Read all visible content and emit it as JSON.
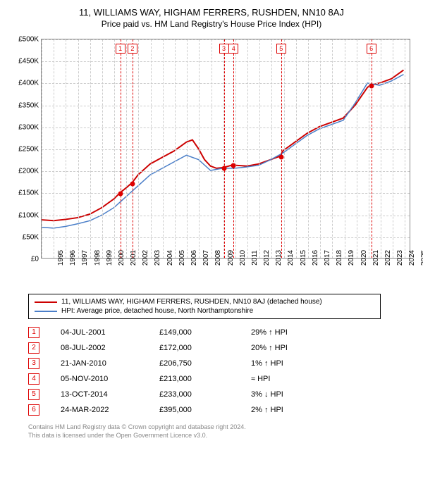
{
  "title": "11, WILLIAMS WAY, HIGHAM FERRERS, RUSHDEN, NN10 8AJ",
  "subtitle": "Price paid vs. HM Land Registry's House Price Index (HPI)",
  "chart": {
    "type": "line",
    "ylim": [
      0,
      500000
    ],
    "ytick_step": 50000,
    "yticks": [
      "£0",
      "£50K",
      "£100K",
      "£150K",
      "£200K",
      "£250K",
      "£300K",
      "£350K",
      "£400K",
      "£450K",
      "£500K"
    ],
    "xlim": [
      1995,
      2025.5
    ],
    "xticks": [
      1995,
      1996,
      1997,
      1998,
      1999,
      2000,
      2001,
      2002,
      2003,
      2004,
      2005,
      2006,
      2007,
      2008,
      2009,
      2010,
      2011,
      2012,
      2013,
      2014,
      2015,
      2016,
      2017,
      2018,
      2019,
      2020,
      2021,
      2022,
      2023,
      2024,
      2025
    ],
    "background_color": "#ffffff",
    "grid_color": "#cccccc",
    "border_color": "#888888",
    "series": [
      {
        "name": "11, WILLIAMS WAY, HIGHAM FERRERS, RUSHDEN, NN10 8AJ (detached house)",
        "color": "#cc0000",
        "width": 2,
        "points": [
          [
            1995,
            87000
          ],
          [
            1996,
            85000
          ],
          [
            1997,
            88000
          ],
          [
            1998,
            92000
          ],
          [
            1999,
            100000
          ],
          [
            2000,
            115000
          ],
          [
            2001,
            135000
          ],
          [
            2001.5,
            149000
          ],
          [
            2002,
            160000
          ],
          [
            2002.5,
            172000
          ],
          [
            2003,
            190000
          ],
          [
            2004,
            215000
          ],
          [
            2005,
            230000
          ],
          [
            2006,
            245000
          ],
          [
            2007,
            265000
          ],
          [
            2007.5,
            270000
          ],
          [
            2008,
            250000
          ],
          [
            2008.5,
            225000
          ],
          [
            2009,
            210000
          ],
          [
            2009.5,
            205000
          ],
          [
            2010.05,
            206750
          ],
          [
            2010.5,
            210000
          ],
          [
            2010.85,
            213000
          ],
          [
            2011,
            212000
          ],
          [
            2012,
            210000
          ],
          [
            2013,
            215000
          ],
          [
            2014,
            225000
          ],
          [
            2014.78,
            233000
          ],
          [
            2015,
            245000
          ],
          [
            2016,
            265000
          ],
          [
            2017,
            285000
          ],
          [
            2018,
            300000
          ],
          [
            2019,
            310000
          ],
          [
            2020,
            320000
          ],
          [
            2021,
            350000
          ],
          [
            2022,
            390000
          ],
          [
            2022.22,
            395000
          ],
          [
            2023,
            400000
          ],
          [
            2024,
            410000
          ],
          [
            2025,
            430000
          ]
        ]
      },
      {
        "name": "HPI: Average price, detached house, North Northamptonshire",
        "color": "#4a7ec8",
        "width": 1.5,
        "points": [
          [
            1995,
            70000
          ],
          [
            1996,
            68000
          ],
          [
            1997,
            72000
          ],
          [
            1998,
            78000
          ],
          [
            1999,
            85000
          ],
          [
            2000,
            98000
          ],
          [
            2001,
            115000
          ],
          [
            2002,
            140000
          ],
          [
            2003,
            165000
          ],
          [
            2004,
            190000
          ],
          [
            2005,
            205000
          ],
          [
            2006,
            220000
          ],
          [
            2007,
            235000
          ],
          [
            2008,
            225000
          ],
          [
            2009,
            200000
          ],
          [
            2010,
            205000
          ],
          [
            2011,
            205000
          ],
          [
            2012,
            208000
          ],
          [
            2013,
            212000
          ],
          [
            2014,
            225000
          ],
          [
            2015,
            240000
          ],
          [
            2016,
            260000
          ],
          [
            2017,
            280000
          ],
          [
            2018,
            295000
          ],
          [
            2019,
            305000
          ],
          [
            2020,
            315000
          ],
          [
            2021,
            355000
          ],
          [
            2022,
            400000
          ],
          [
            2023,
            395000
          ],
          [
            2024,
            405000
          ],
          [
            2025,
            420000
          ]
        ]
      }
    ],
    "markers": [
      {
        "n": "1",
        "x": 2001.5,
        "y": 149000,
        "color": "#d00"
      },
      {
        "n": "2",
        "x": 2002.5,
        "y": 172000,
        "color": "#d00"
      },
      {
        "n": "3",
        "x": 2010.05,
        "y": 206750,
        "color": "#d00"
      },
      {
        "n": "4",
        "x": 2010.85,
        "y": 213000,
        "color": "#d00"
      },
      {
        "n": "5",
        "x": 2014.78,
        "y": 233000,
        "color": "#d00"
      },
      {
        "n": "6",
        "x": 2022.22,
        "y": 395000,
        "color": "#d00"
      }
    ]
  },
  "legend": [
    {
      "color": "#cc0000",
      "label": "11, WILLIAMS WAY, HIGHAM FERRERS, RUSHDEN, NN10 8AJ (detached house)"
    },
    {
      "color": "#4a7ec8",
      "label": "HPI: Average price, detached house, North Northamptonshire"
    }
  ],
  "sales": [
    {
      "n": "1",
      "date": "04-JUL-2001",
      "price": "£149,000",
      "hpi": "29% ↑ HPI"
    },
    {
      "n": "2",
      "date": "08-JUL-2002",
      "price": "£172,000",
      "hpi": "20% ↑ HPI"
    },
    {
      "n": "3",
      "date": "21-JAN-2010",
      "price": "£206,750",
      "hpi": "1% ↑ HPI"
    },
    {
      "n": "4",
      "date": "05-NOV-2010",
      "price": "£213,000",
      "hpi": "≈ HPI"
    },
    {
      "n": "5",
      "date": "13-OCT-2014",
      "price": "£233,000",
      "hpi": "3% ↓ HPI"
    },
    {
      "n": "6",
      "date": "24-MAR-2022",
      "price": "£395,000",
      "hpi": "2% ↑ HPI"
    }
  ],
  "footer": {
    "line1": "Contains HM Land Registry data © Crown copyright and database right 2024.",
    "line2": "This data is licensed under the Open Government Licence v3.0."
  }
}
